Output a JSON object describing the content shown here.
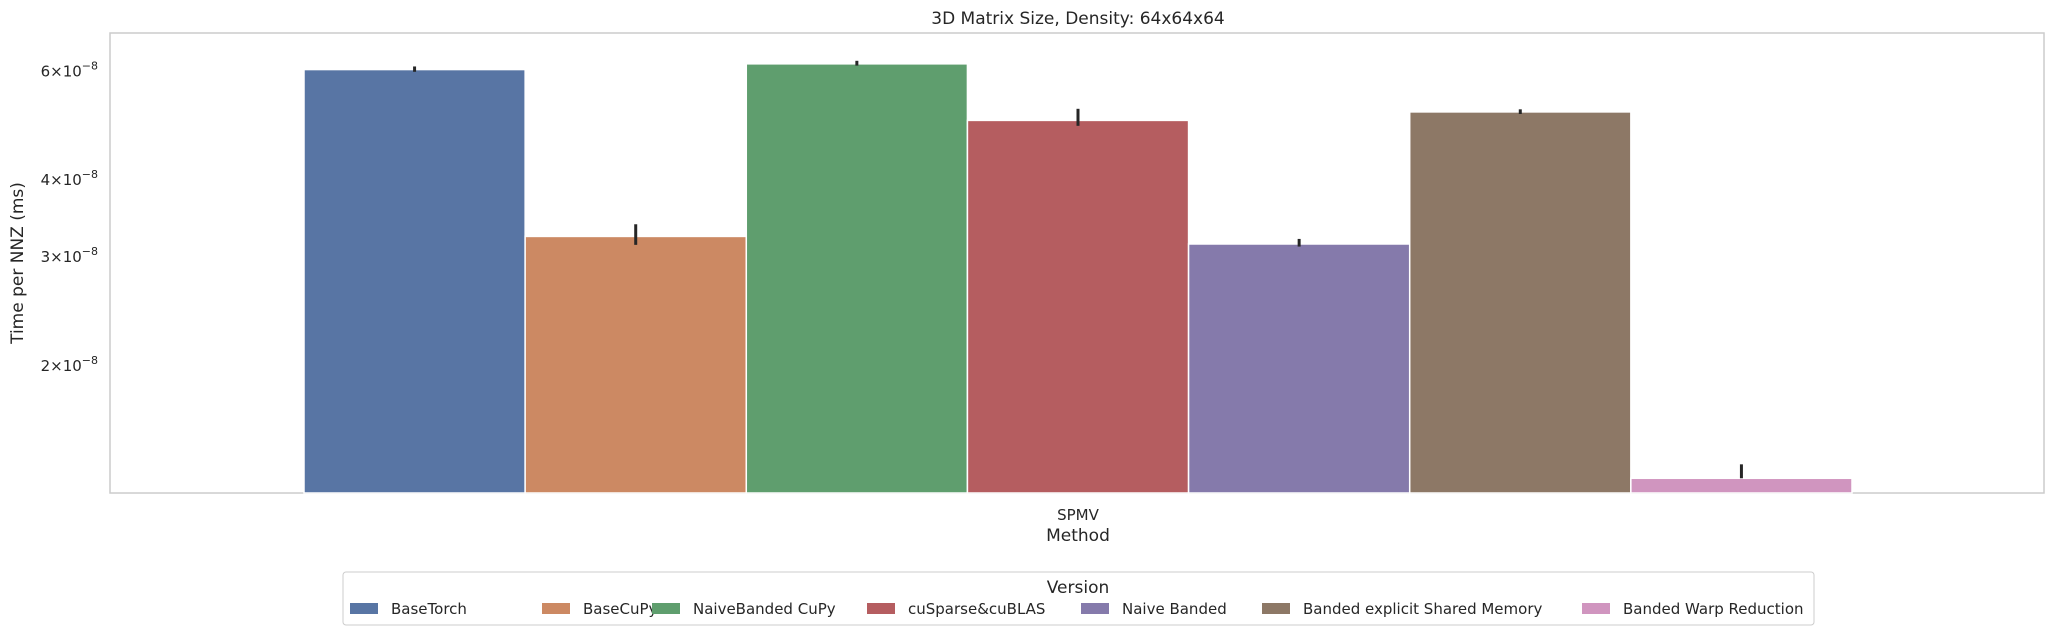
{
  "chart_data": {
    "type": "bar",
    "title": "3D Matrix Size, Density: 64x64x64",
    "xlabel": "Method",
    "ylabel": "Time per NNZ (ms)",
    "yscale": "log",
    "ylim": [
      1.24e-08,
      6.9e-08
    ],
    "grid": false,
    "categories": [
      "SPMV"
    ],
    "yticks": [
      {
        "value": 6e-08,
        "mantissa": "6",
        "base": "10",
        "exp": "−8"
      },
      {
        "value": 4e-08,
        "mantissa": "4",
        "base": "10",
        "exp": "−8"
      },
      {
        "value": 3e-08,
        "mantissa": "3",
        "base": "10",
        "exp": "−8"
      },
      {
        "value": 2e-08,
        "mantissa": "2",
        "base": "10",
        "exp": "−8"
      }
    ],
    "times_symbol": "×",
    "legend": {
      "title": "Version",
      "placement": "bottom-center"
    },
    "series": [
      {
        "name": "BaseTorch",
        "color": "#5875a4",
        "values": [
          6.02e-08
        ],
        "err_low": [
          5.97e-08
        ],
        "err_high": [
          6.09e-08
        ]
      },
      {
        "name": "BaseCuPy",
        "color": "#cc8963",
        "values": [
          3.23e-08
        ],
        "err_low": [
          3.13e-08
        ],
        "err_high": [
          3.38e-08
        ]
      },
      {
        "name": "NaiveBanded CuPy",
        "color": "#5f9e6e",
        "values": [
          6.15e-08
        ],
        "err_low": [
          6.11e-08
        ],
        "err_high": [
          6.22e-08
        ]
      },
      {
        "name": "cuSparse&cuBLAS",
        "color": "#b55d60",
        "values": [
          4.98e-08
        ],
        "err_low": [
          4.88e-08
        ],
        "err_high": [
          5.2e-08
        ]
      },
      {
        "name": "Naive Banded",
        "color": "#857aab",
        "values": [
          3.14e-08
        ],
        "err_low": [
          3.11e-08
        ],
        "err_high": [
          3.2e-08
        ]
      },
      {
        "name": "Banded explicit Shared Memory",
        "color": "#8d7866",
        "values": [
          5.14e-08
        ],
        "err_low": [
          5.1e-08
        ],
        "err_high": [
          5.19e-08
        ]
      },
      {
        "name": "Banded Warp Reduction",
        "color": "#d095bf",
        "values": [
          1.31e-08
        ],
        "err_low": [
          1.31e-08
        ],
        "err_high": [
          1.38e-08
        ]
      }
    ]
  }
}
